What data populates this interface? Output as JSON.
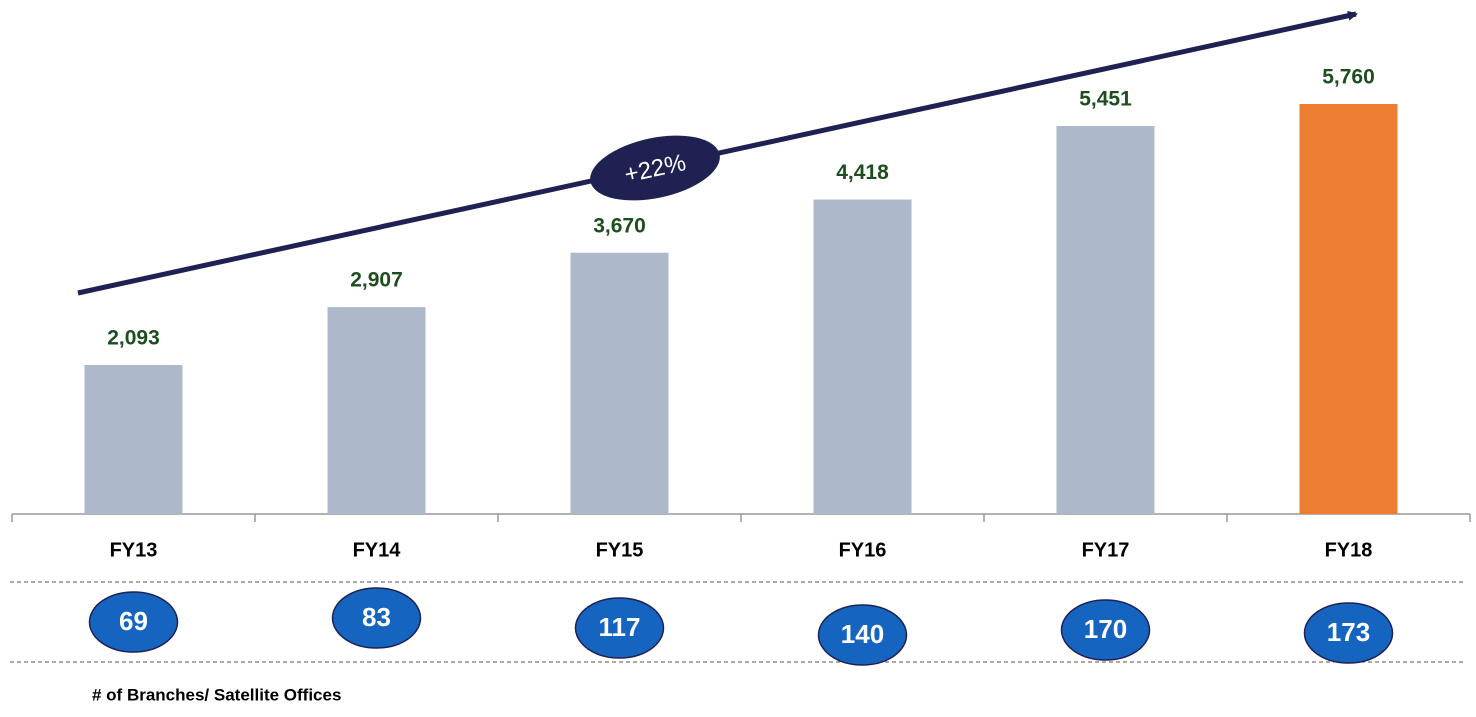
{
  "chart_data": {
    "type": "bar",
    "categories": [
      "FY13",
      "FY14",
      "FY15",
      "FY16",
      "FY17",
      "FY18"
    ],
    "values": [
      2093,
      2907,
      3670,
      4418,
      5451,
      5760
    ],
    "value_labels": [
      "2,093",
      "2,907",
      "3,670",
      "4,418",
      "5,451",
      "5,760"
    ],
    "colors": [
      "#adb9ca",
      "#adb9ca",
      "#adb9ca",
      "#adb9ca",
      "#adb9ca",
      "#ed7d31"
    ],
    "annotation": "+22%",
    "branches": {
      "label": "# of Branches/ Satellite Offices",
      "values": [
        69,
        83,
        117,
        140,
        170,
        173
      ]
    }
  }
}
